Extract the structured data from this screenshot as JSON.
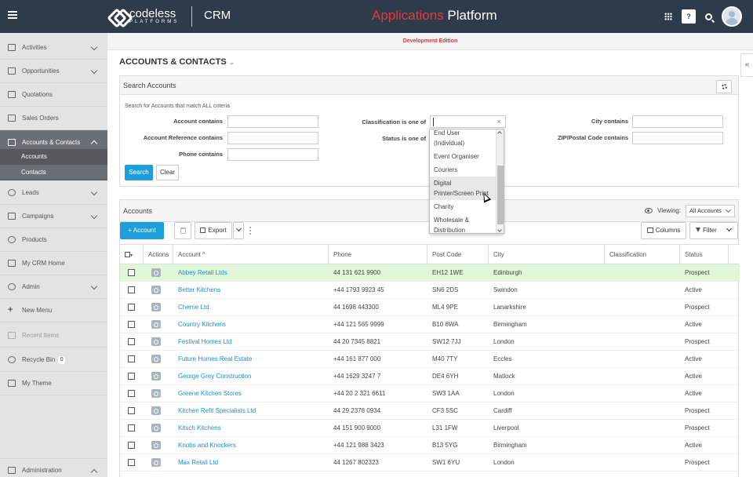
{
  "header": {
    "logo_main": "codeless",
    "logo_sub": "PLATFORMS",
    "product": "CRM",
    "title_red": "Applications",
    "title_white": " Platform",
    "help": "?"
  },
  "dev_banner": "Development Edition",
  "sidebar": {
    "items": [
      {
        "label": "Activities"
      },
      {
        "label": "Opportunities"
      },
      {
        "label": "Quotations"
      },
      {
        "label": "Sales Orders"
      },
      {
        "label": "Accounts & Contacts"
      },
      {
        "label": "Leads"
      },
      {
        "label": "Campaigns"
      },
      {
        "label": "Products"
      },
      {
        "label": "My CRM Home"
      },
      {
        "label": "Admin"
      },
      {
        "label": "New Menu"
      },
      {
        "label": "Recent Items"
      },
      {
        "label": "Recycle Bin"
      },
      {
        "label": "My Theme"
      },
      {
        "label": "Administration"
      }
    ],
    "subitems": [
      "Accounts",
      "Contacts"
    ],
    "recycle_count": "0"
  },
  "page": {
    "title": "ACCOUNTS & CONTACTS",
    "chevron": "⌄"
  },
  "search": {
    "panel_title": "Search Accounts",
    "criteria_text": "Search for Accounts that match ALL criteria",
    "labels": {
      "account": "Account contains",
      "account_ref": "Account Reference contains",
      "phone": "Phone contains",
      "classification": "Classification is one of",
      "status": "Status is one of",
      "city": "City contains",
      "zip": "ZIP/Postal Code contains"
    },
    "search_button": "Search",
    "clear_button": "Clear",
    "clear_x": "×",
    "dropdown_options": [
      "End User (Individual)",
      "Event Organiser",
      "Couriers",
      "Digital Printer/Screen Print",
      "Charity",
      "Wholesale & Distribution"
    ]
  },
  "accounts": {
    "panel_title": "Accounts",
    "viewing_label": "Viewing:",
    "viewing_value": "All Accounts",
    "add_button": "+ Account",
    "export_button": "Export",
    "columns_button": "Columns",
    "filter_button": "Filter",
    "headers": {
      "actions": "Actions",
      "account": "Account",
      "phone": "Phone",
      "postcode": "Post Code",
      "city": "City",
      "classification": "Classification",
      "status": "Status"
    },
    "sort_indicator": "^",
    "rows": [
      {
        "account": "Abbey Retail Ltds",
        "phone": "44 131 621 9900",
        "postcode": "EH12 1WE",
        "city": "Edinburgh",
        "classification": "",
        "status": "Prospect"
      },
      {
        "account": "Better Kitchens",
        "phone": "+44 1793 9923 45",
        "postcode": "SN6 2DS",
        "city": "Swindon",
        "classification": "",
        "status": "Active"
      },
      {
        "account": "Cherrie Ltd",
        "phone": "44 1698 443300",
        "postcode": "ML4 9PE",
        "city": "Lanarkshire",
        "classification": "",
        "status": "Prospect"
      },
      {
        "account": "Country Kitchens",
        "phone": "+44 121 565 9999",
        "postcode": "B10 6WA",
        "city": "Birmingham",
        "classification": "",
        "status": "Active"
      },
      {
        "account": "Festival Homes Ltd",
        "phone": "44 20 7345 8821",
        "postcode": "SW12 7JJ",
        "city": "London",
        "classification": "",
        "status": "Prospect"
      },
      {
        "account": "Future Homes Real Estate",
        "phone": "+44 161 877 000",
        "postcode": "M40 7TY",
        "city": "Eccles",
        "classification": "",
        "status": "Active"
      },
      {
        "account": "George Grey Construction",
        "phone": "+44 1629 3247 7",
        "postcode": "DE4 6YH",
        "city": "Matlock",
        "classification": "",
        "status": "Active"
      },
      {
        "account": "Greene Kitchen Stores",
        "phone": "+44 20 2 321 6611",
        "postcode": "SW3 1AA",
        "city": "London",
        "classification": "",
        "status": "Active"
      },
      {
        "account": "Kitchen Refit Specialists Ltd",
        "phone": "44 29 2378 0934",
        "postcode": "CF3 5SC",
        "city": "Cardiff",
        "classification": "",
        "status": "Prospect"
      },
      {
        "account": "Kitsch Kitchens",
        "phone": "44 151 900 9000",
        "postcode": "L31 1FW",
        "city": "Liverpool",
        "classification": "",
        "status": "Prospect"
      },
      {
        "account": "Knobs and Knockers",
        "phone": "+44 121 988 3423",
        "postcode": "B13 5YG",
        "city": "Birmingham",
        "classification": "",
        "status": "Active"
      },
      {
        "account": "Max Retail Ltd",
        "phone": "44 1267 802323",
        "postcode": "SW1 6YU",
        "city": "London",
        "classification": "",
        "status": "Prospect"
      }
    ]
  }
}
